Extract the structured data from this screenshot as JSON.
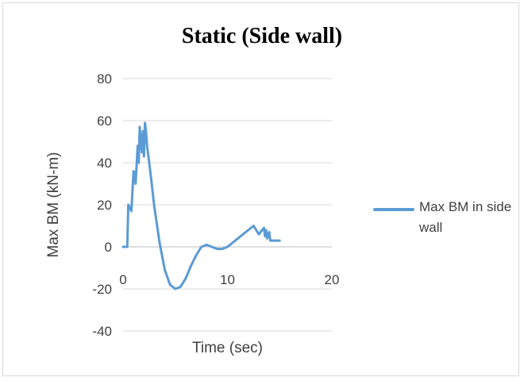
{
  "chart_data": {
    "type": "line",
    "title": "Static (Side wall)",
    "xlabel": "Time (sec)",
    "ylabel": "Max BM (kN-m)",
    "xlim": [
      0,
      20
    ],
    "ylim": [
      -40,
      80
    ],
    "xticks": [
      0,
      10,
      20
    ],
    "yticks": [
      -40,
      -20,
      0,
      20,
      40,
      60,
      80
    ],
    "grid": "horizontal",
    "legend_position": "right",
    "series": [
      {
        "name": "Max BM in side wall",
        "color": "#5b9bd5",
        "x": [
          0,
          0.4,
          0.5,
          0.6,
          0.8,
          1.0,
          1.1,
          1.2,
          1.4,
          1.5,
          1.6,
          1.7,
          1.8,
          1.9,
          2.0,
          2.1,
          2.2,
          2.3,
          2.4,
          2.5,
          2.7,
          3.0,
          3.5,
          4.0,
          4.5,
          5.0,
          5.5,
          6.0,
          6.5,
          7.0,
          7.5,
          8.0,
          8.5,
          9.0,
          9.5,
          10.0,
          10.5,
          11.0,
          11.5,
          12.0,
          12.5,
          13.0,
          13.5,
          13.6,
          13.7,
          13.8,
          14.0,
          14.1,
          14.2,
          14.4,
          14.5,
          14.6,
          14.8,
          14.9,
          15.0
        ],
        "y": [
          0,
          0,
          20,
          19,
          17,
          36,
          35,
          30,
          48,
          40,
          57,
          50,
          45,
          55,
          43,
          59,
          55,
          48,
          44,
          40,
          32,
          19,
          2,
          -11,
          -18,
          -20,
          -19,
          -15,
          -9,
          -4,
          0,
          1,
          0,
          -1,
          -1,
          0,
          2,
          4,
          6,
          8,
          10,
          6,
          9,
          5,
          8,
          4,
          7,
          3,
          3,
          3,
          3,
          3,
          3,
          3,
          3
        ]
      }
    ]
  }
}
